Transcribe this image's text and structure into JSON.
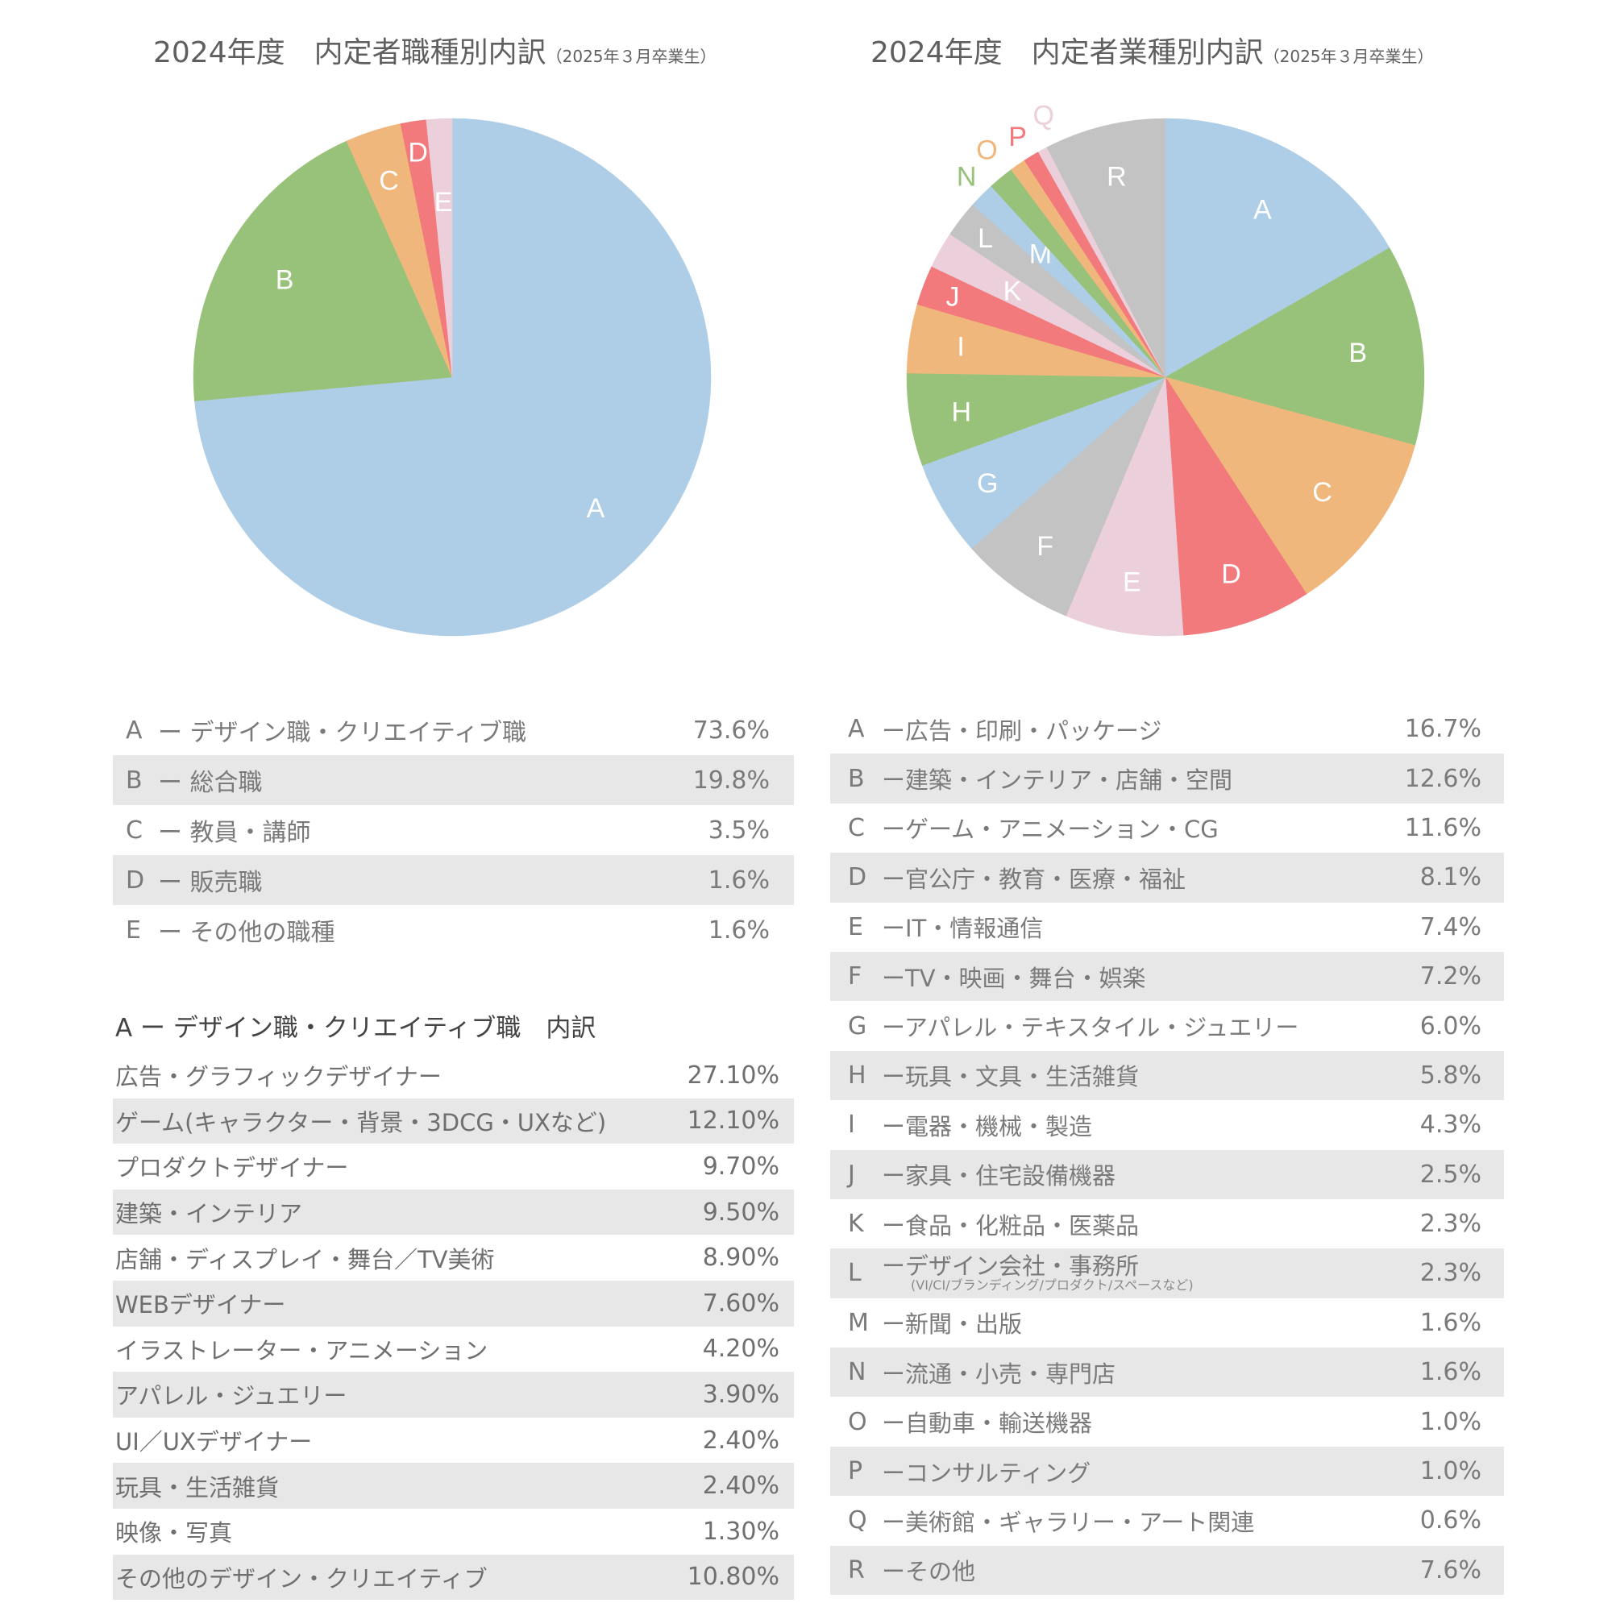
{
  "charts_header": {
    "left_title": "2024年度　内定者職種別内訳",
    "left_subtitle": "（2025年３月卒業生）",
    "right_title": "2024年度　内定者業種別内訳",
    "right_subtitle": "（2025年３月卒業生）"
  },
  "chart_data": [
    {
      "type": "pie",
      "title": "2024年度　内定者職種別内訳（2025年３月卒業生）",
      "categories": [
        "A",
        "B",
        "C",
        "D",
        "E"
      ],
      "labels": [
        "デザイン職・クリエイティブ職",
        "総合職",
        "教員・講師",
        "販売職",
        "その他の職種"
      ],
      "values": [
        73.6,
        19.8,
        3.5,
        1.6,
        1.6
      ],
      "colors": [
        "#aecde6",
        "#98c27a",
        "#f0b77c",
        "#f2797c",
        "#ebcfdb"
      ],
      "label_colors": [
        "#ffffff",
        "#ffffff",
        "#ffffff",
        "#ffffff",
        "#ffffff"
      ],
      "start": "12 o'clock",
      "direction": "clockwise",
      "legend": "none"
    },
    {
      "type": "pie",
      "title": "2024年度　内定者業種別内訳（2025年３月卒業生）",
      "categories": [
        "A",
        "B",
        "C",
        "D",
        "E",
        "F",
        "G",
        "H",
        "I",
        "J",
        "K",
        "L",
        "M",
        "N",
        "O",
        "P",
        "Q",
        "R"
      ],
      "values": [
        16.7,
        12.6,
        11.6,
        8.1,
        7.4,
        7.2,
        6.0,
        5.8,
        4.3,
        2.5,
        2.3,
        2.3,
        1.6,
        1.6,
        1.0,
        1.0,
        0.6,
        7.6
      ],
      "colors": [
        "#aecde6",
        "#98c27a",
        "#f0b77c",
        "#f2797c",
        "#ebcfdb",
        "#c3c3c3",
        "#aecde6",
        "#98c27a",
        "#f0b77c",
        "#f2797c",
        "#ebcfdb",
        "#c3c3c3",
        "#aecde6",
        "#98c27a",
        "#f0b77c",
        "#f2797c",
        "#ebcfdb",
        "#c3c3c3"
      ],
      "outside_labels": [
        "N",
        "O",
        "P",
        "Q"
      ],
      "start": "12 o'clock",
      "direction": "clockwise",
      "legend": "none"
    }
  ],
  "job_table": {
    "rows": [
      {
        "letter": "A",
        "label": "ー デザイン職・クリエイティブ職",
        "pct": "73.6%"
      },
      {
        "letter": "B",
        "label": "ー 総合職",
        "pct": "19.8%"
      },
      {
        "letter": "C",
        "label": "ー 教員・講師",
        "pct": "3.5%"
      },
      {
        "letter": "D",
        "label": "ー 販売職",
        "pct": "1.6%"
      },
      {
        "letter": "E",
        "label": "ー その他の職種",
        "pct": "1.6%"
      }
    ]
  },
  "design_breakdown": {
    "heading": "A ー デザイン職・クリエイティブ職　内訳",
    "rows": [
      {
        "label": "広告・グラフィックデザイナー",
        "pct": "27.10%"
      },
      {
        "label": "ゲーム(キャラクター・背景・3DCG・UXなど)",
        "pct": "12.10%"
      },
      {
        "label": "プロダクトデザイナー",
        "pct": "9.70%"
      },
      {
        "label": "建築・インテリア",
        "pct": "9.50%"
      },
      {
        "label": "店舗・ディスプレイ・舞台／TV美術",
        "pct": "8.90%"
      },
      {
        "label": "WEBデザイナー",
        "pct": "7.60%"
      },
      {
        "label": "イラストレーター・アニメーション",
        "pct": "4.20%"
      },
      {
        "label": "アパレル・ジュエリー",
        "pct": "3.90%"
      },
      {
        "label": "UI／UXデザイナー",
        "pct": "2.40%"
      },
      {
        "label": "玩具・生活雑貨",
        "pct": "2.40%"
      },
      {
        "label": "映像・写真",
        "pct": "1.30%"
      },
      {
        "label": "その他のデザイン・クリエイティブ",
        "pct": "10.80%"
      }
    ]
  },
  "industry_table": {
    "rows": [
      {
        "letter": "A",
        "label": "ー広告・印刷・パッケージ",
        "pct": "16.7%"
      },
      {
        "letter": "B",
        "label": "ー建築・インテリア・店舗・空間",
        "pct": "12.6%"
      },
      {
        "letter": "C",
        "label": "ーゲーム・アニメーション・CG",
        "pct": "11.6%"
      },
      {
        "letter": "D",
        "label": "ー官公庁・教育・医療・福祉",
        "pct": "8.1%"
      },
      {
        "letter": "E",
        "label": "ーIT・情報通信",
        "pct": "7.4%"
      },
      {
        "letter": "F",
        "label": "ーTV・映画・舞台・娯楽",
        "pct": "7.2%"
      },
      {
        "letter": "G",
        "label": "ーアパレル・テキスタイル・ジュエリー",
        "pct": "6.0%"
      },
      {
        "letter": "H",
        "label": "ー玩具・文具・生活雑貨",
        "pct": "5.8%"
      },
      {
        "letter": "I",
        "label": "ー電器・機械・製造",
        "pct": "4.3%"
      },
      {
        "letter": "J",
        "label": "ー家具・住宅設備機器",
        "pct": "2.5%"
      },
      {
        "letter": "K",
        "label": "ー食品・化粧品・医薬品",
        "pct": "2.3%"
      },
      {
        "letter": "L",
        "label": "ーデザイン会社・事務所",
        "note": "(VI/CI/ブランディング/プロダクト/スペースなど)",
        "pct": "2.3%"
      },
      {
        "letter": "M",
        "label": "ー新聞・出版",
        "pct": "1.6%"
      },
      {
        "letter": "N",
        "label": "ー流通・小売・専門店",
        "pct": "1.6%"
      },
      {
        "letter": "O",
        "label": "ー自動車・輸送機器",
        "pct": "1.0%"
      },
      {
        "letter": "P",
        "label": "ーコンサルティング",
        "pct": "1.0%"
      },
      {
        "letter": "Q",
        "label": "ー美術館・ギャラリー・アート関連",
        "pct": "0.6%"
      },
      {
        "letter": "R",
        "label": "ーその他",
        "pct": "7.6%"
      }
    ]
  }
}
